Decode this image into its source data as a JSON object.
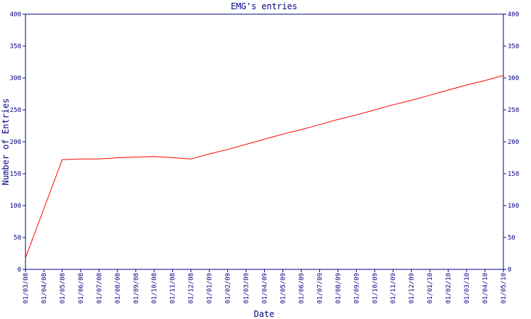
{
  "chart_data": {
    "type": "line",
    "title": "EMG's entries",
    "x_label": "Date",
    "y_label": "Number of Entries",
    "categories": [
      "01/03/08",
      "01/04/08",
      "01/05/08",
      "01/06/08",
      "01/07/08",
      "01/08/08",
      "01/09/08",
      "01/10/08",
      "01/11/08",
      "01/12/08",
      "01/01/09",
      "01/02/09",
      "01/03/09",
      "01/04/09",
      "01/05/09",
      "01/06/09",
      "01/07/09",
      "01/08/09",
      "01/09/09",
      "01/10/09",
      "01/11/09",
      "01/12/09",
      "01/01/10",
      "01/02/10",
      "01/03/10",
      "01/04/10",
      "01/05/10"
    ],
    "series": [
      {
        "color": "#ff0000",
        "values": [
          18,
          95,
          172,
          173,
          173,
          175,
          176,
          177,
          175,
          173,
          181,
          188,
          196,
          204,
          212,
          219,
          227,
          235,
          242,
          250,
          258,
          265,
          273,
          281,
          289,
          296,
          304
        ]
      }
    ],
    "ylim": [
      0,
      400
    ],
    "yticks": [
      0,
      50,
      100,
      150,
      200,
      250,
      300,
      350,
      400
    ],
    "y2lim": [
      0,
      400
    ],
    "y2ticks": [
      0,
      50,
      100,
      150,
      200,
      250,
      300,
      350,
      400
    ],
    "axis_color": "#000080"
  }
}
